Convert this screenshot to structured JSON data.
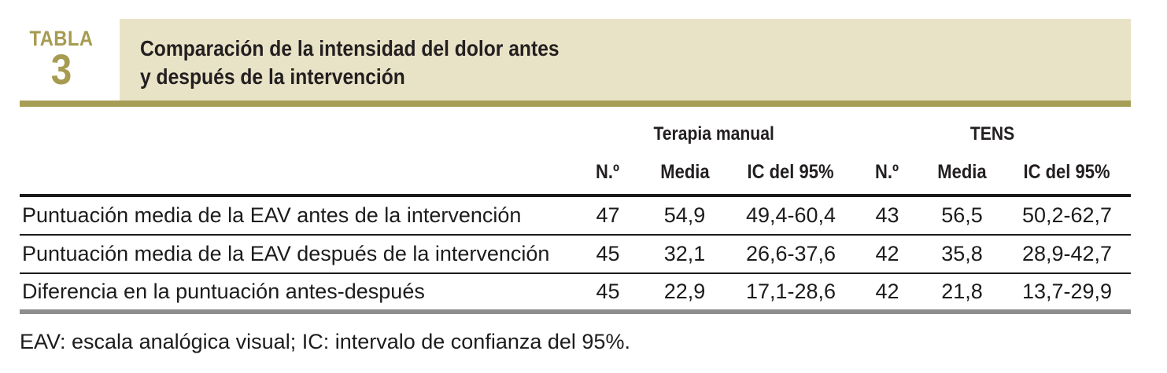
{
  "figure": {
    "label_word": "TABLA",
    "label_number": "3",
    "title_line1": "Comparación de la intensidad del dolor antes",
    "title_line2": "y después de la intervención"
  },
  "table": {
    "group_headers": {
      "terapia_manual": "Terapia manual",
      "tens": "TENS"
    },
    "sub_headers": [
      "N.º",
      "Media",
      "IC del 95%",
      "N.º",
      "Media",
      "IC del 95%"
    ],
    "rows": [
      {
        "label": "Puntuación media de la EAV antes de la intervención",
        "values": [
          "47",
          "54,9",
          "49,4-60,4",
          "43",
          "56,5",
          "50,2-62,7"
        ]
      },
      {
        "label": "Puntuación media de la EAV después de la intervención",
        "values": [
          "45",
          "32,1",
          "26,6-37,6",
          "42",
          "35,8",
          "28,9-42,7"
        ]
      },
      {
        "label": "Diferencia en la puntuación antes-después",
        "values": [
          "45",
          "22,9",
          "17,1-28,6",
          "42",
          "21,8",
          "13,7-29,9"
        ]
      }
    ]
  },
  "footnote": "EAV: escala analógica visual; IC: intervalo de confianza del 95%.",
  "colors": {
    "accent_olive_bar": "#a79e56",
    "accent_olive_text": "#a69b51",
    "band_beige": "#e8e3c6",
    "text_dark": "#231f20",
    "rule_black": "#1a1a1a",
    "rule_gray": "#8e8e8e"
  }
}
